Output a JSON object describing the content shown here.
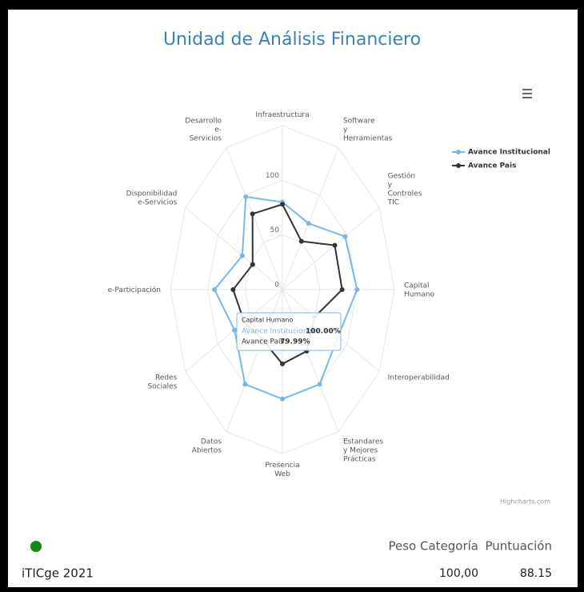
{
  "chart_data": {
    "type": "radar",
    "title": "Unidad de Análisis Financiero",
    "categories": [
      "Infraestructura",
      "Software\ny\nHerramientas",
      "Gestión\ny\nControles\nTIC",
      "Capital\nHumano",
      "Interoperabilidad",
      "Estandares\ny Mejores\nPrácticas",
      "Presencia\nWeb",
      "Datos\nAbiertos",
      "Redes\nSociales",
      "e-Participación",
      "Disponibilidad\ne-Servicios",
      "Desarrollo\ne-\nServicios"
    ],
    "series": [
      {
        "name": "Avance Institucional",
        "color": "#7cb5ec",
        "values": [
          80,
          70,
          97,
          100,
          86,
          100,
          100,
          100,
          74,
          91,
          62,
          98
        ]
      },
      {
        "name": "Avance Pais",
        "color": "#333333",
        "values": [
          78,
          51,
          81,
          80,
          50,
          65,
          68,
          53,
          59,
          66,
          46,
          80
        ]
      }
    ],
    "ylim": [
      0,
      150
    ],
    "yticks": [
      0,
      50,
      100
    ],
    "grid": true,
    "legend": "right",
    "tooltip": {
      "header": "Capital Humano",
      "rows": [
        {
          "label": "Avance Institucional:",
          "value": "100.00%"
        },
        {
          "label": "Avance Pais:",
          "value": "79.99%"
        }
      ]
    },
    "credits": "Highcharts.com"
  },
  "footer": {
    "name": "iTICge 2021",
    "headers": [
      "Peso Categoría",
      "Puntuación"
    ],
    "values": [
      "100,00",
      "88.15"
    ]
  }
}
